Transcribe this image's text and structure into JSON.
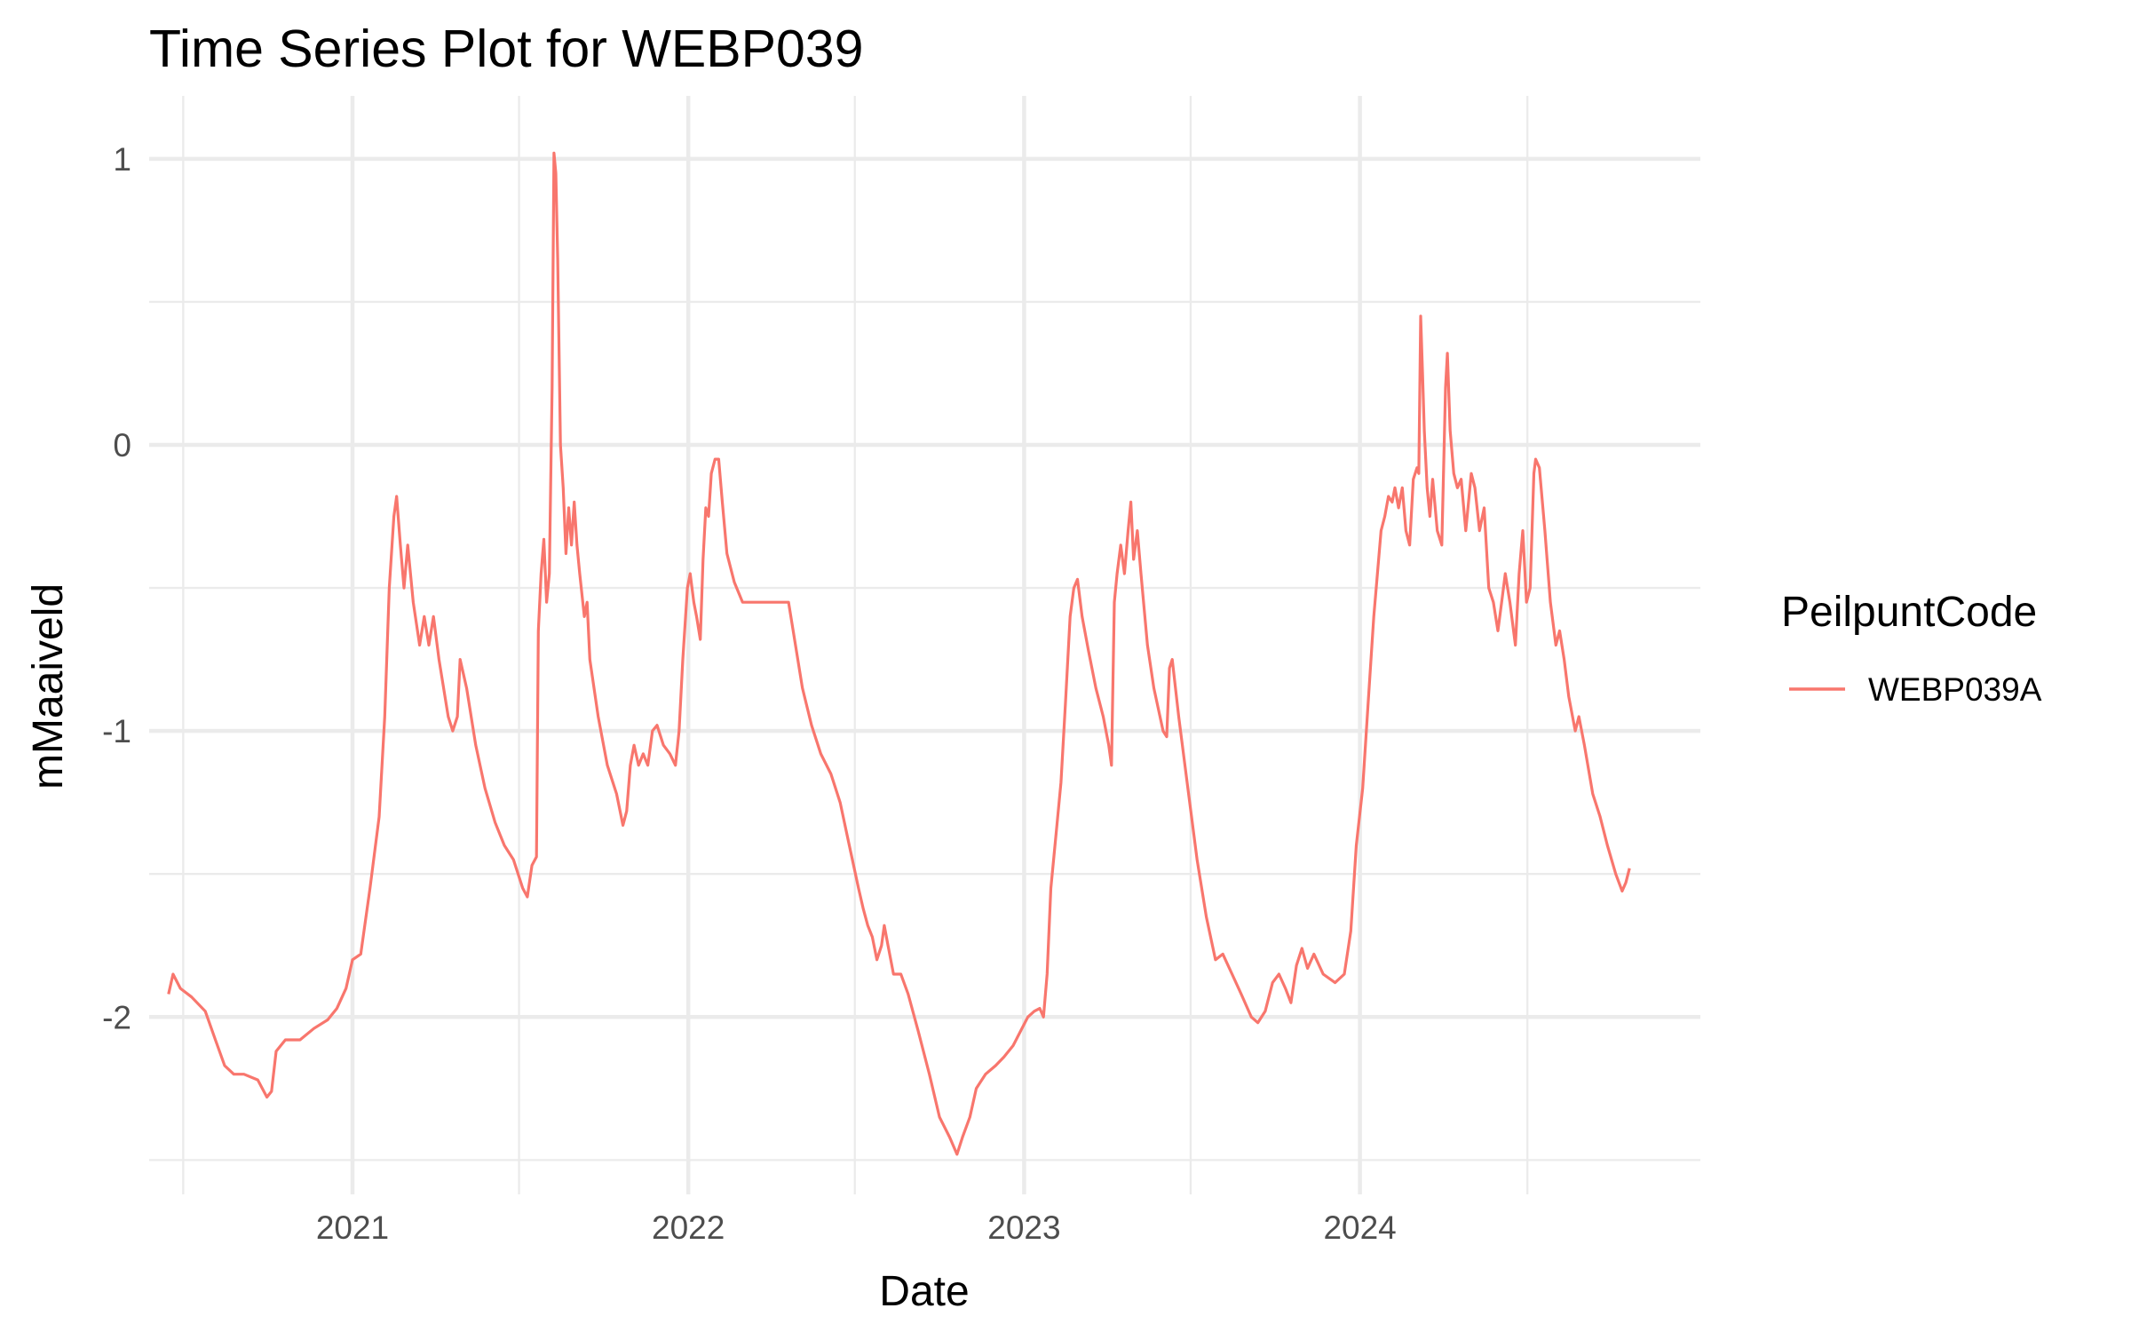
{
  "chart_data": {
    "type": "line",
    "title": "Time Series Plot for WEBP039",
    "xlabel": "Date",
    "ylabel": "mMaaiveld",
    "x_ticks": [
      "2021",
      "2022",
      "2023",
      "2024"
    ],
    "y_ticks": [
      "1",
      "0",
      "-1",
      "-2"
    ],
    "xlim": [
      "2020-05-25",
      "2025-01-05"
    ],
    "ylim": [
      -2.62,
      1.22
    ],
    "grid": true,
    "legend": {
      "title": "PeilpuntCode",
      "position": "right"
    },
    "series": [
      {
        "name": "WEBP039A",
        "color": "#F8766D",
        "points": [
          [
            "2020-06-15",
            -1.92
          ],
          [
            "2020-06-20",
            -1.85
          ],
          [
            "2020-06-28",
            -1.9
          ],
          [
            "2020-07-10",
            -1.93
          ],
          [
            "2020-07-25",
            -1.98
          ],
          [
            "2020-08-05",
            -2.08
          ],
          [
            "2020-08-15",
            -2.17
          ],
          [
            "2020-08-25",
            -2.2
          ],
          [
            "2020-09-05",
            -2.2
          ],
          [
            "2020-09-20",
            -2.22
          ],
          [
            "2020-09-30",
            -2.28
          ],
          [
            "2020-10-05",
            -2.26
          ],
          [
            "2020-10-10",
            -2.12
          ],
          [
            "2020-10-20",
            -2.08
          ],
          [
            "2020-11-05",
            -2.08
          ],
          [
            "2020-11-20",
            -2.04
          ],
          [
            "2020-12-05",
            -2.01
          ],
          [
            "2020-12-15",
            -1.97
          ],
          [
            "2020-12-25",
            -1.9
          ],
          [
            "2021-01-01",
            -1.8
          ],
          [
            "2021-01-10",
            -1.78
          ],
          [
            "2021-01-20",
            -1.55
          ],
          [
            "2021-01-30",
            -1.3
          ],
          [
            "2021-02-05",
            -0.95
          ],
          [
            "2021-02-10",
            -0.5
          ],
          [
            "2021-02-15",
            -0.25
          ],
          [
            "2021-02-18",
            -0.18
          ],
          [
            "2021-02-22",
            -0.35
          ],
          [
            "2021-02-26",
            -0.5
          ],
          [
            "2021-03-02",
            -0.35
          ],
          [
            "2021-03-08",
            -0.55
          ],
          [
            "2021-03-15",
            -0.7
          ],
          [
            "2021-03-20",
            -0.6
          ],
          [
            "2021-03-25",
            -0.7
          ],
          [
            "2021-03-30",
            -0.6
          ],
          [
            "2021-04-05",
            -0.75
          ],
          [
            "2021-04-15",
            -0.95
          ],
          [
            "2021-04-20",
            -1.0
          ],
          [
            "2021-04-25",
            -0.95
          ],
          [
            "2021-04-28",
            -0.75
          ],
          [
            "2021-05-05",
            -0.85
          ],
          [
            "2021-05-15",
            -1.05
          ],
          [
            "2021-05-25",
            -1.2
          ],
          [
            "2021-06-05",
            -1.32
          ],
          [
            "2021-06-15",
            -1.4
          ],
          [
            "2021-06-25",
            -1.45
          ],
          [
            "2021-07-05",
            -1.55
          ],
          [
            "2021-07-10",
            -1.58
          ],
          [
            "2021-07-15",
            -1.47
          ],
          [
            "2021-07-20",
            -1.44
          ],
          [
            "2021-07-22",
            -0.65
          ],
          [
            "2021-07-25",
            -0.45
          ],
          [
            "2021-07-28",
            -0.33
          ],
          [
            "2021-07-31",
            -0.55
          ],
          [
            "2021-08-03",
            -0.45
          ],
          [
            "2021-08-06",
            0.2
          ],
          [
            "2021-08-08",
            1.02
          ],
          [
            "2021-08-10",
            0.95
          ],
          [
            "2021-08-12",
            0.65
          ],
          [
            "2021-08-15",
            0.0
          ],
          [
            "2021-08-18",
            -0.15
          ],
          [
            "2021-08-21",
            -0.38
          ],
          [
            "2021-08-24",
            -0.22
          ],
          [
            "2021-08-27",
            -0.35
          ],
          [
            "2021-08-30",
            -0.2
          ],
          [
            "2021-09-02",
            -0.35
          ],
          [
            "2021-09-05",
            -0.45
          ],
          [
            "2021-09-10",
            -0.6
          ],
          [
            "2021-09-13",
            -0.55
          ],
          [
            "2021-09-16",
            -0.75
          ],
          [
            "2021-09-25",
            -0.95
          ],
          [
            "2021-10-05",
            -1.12
          ],
          [
            "2021-10-15",
            -1.22
          ],
          [
            "2021-10-22",
            -1.33
          ],
          [
            "2021-10-26",
            -1.28
          ],
          [
            "2021-10-30",
            -1.12
          ],
          [
            "2021-11-03",
            -1.05
          ],
          [
            "2021-11-08",
            -1.12
          ],
          [
            "2021-11-13",
            -1.08
          ],
          [
            "2021-11-18",
            -1.12
          ],
          [
            "2021-11-23",
            -1.0
          ],
          [
            "2021-11-28",
            -0.98
          ],
          [
            "2021-12-05",
            -1.05
          ],
          [
            "2021-12-12",
            -1.08
          ],
          [
            "2021-12-18",
            -1.12
          ],
          [
            "2021-12-22",
            -1.0
          ],
          [
            "2021-12-26",
            -0.75
          ],
          [
            "2021-12-31",
            -0.5
          ],
          [
            "2022-01-03",
            -0.45
          ],
          [
            "2022-01-07",
            -0.55
          ],
          [
            "2022-01-10",
            -0.6
          ],
          [
            "2022-01-14",
            -0.68
          ],
          [
            "2022-01-17",
            -0.4
          ],
          [
            "2022-01-20",
            -0.22
          ],
          [
            "2022-01-23",
            -0.25
          ],
          [
            "2022-01-26",
            -0.1
          ],
          [
            "2022-01-30",
            -0.05
          ],
          [
            "2022-02-03",
            -0.05
          ],
          [
            "2022-02-07",
            -0.2
          ],
          [
            "2022-02-12",
            -0.38
          ],
          [
            "2022-02-20",
            -0.48
          ],
          [
            "2022-03-01",
            -0.55
          ],
          [
            "2022-03-15",
            -0.55
          ],
          [
            "2022-04-01",
            -0.55
          ],
          [
            "2022-04-15",
            -0.55
          ],
          [
            "2022-04-20",
            -0.55
          ],
          [
            "2022-04-25",
            -0.65
          ],
          [
            "2022-05-05",
            -0.85
          ],
          [
            "2022-05-15",
            -0.98
          ],
          [
            "2022-05-25",
            -1.08
          ],
          [
            "2022-06-05",
            -1.15
          ],
          [
            "2022-06-15",
            -1.25
          ],
          [
            "2022-06-25",
            -1.4
          ],
          [
            "2022-07-05",
            -1.55
          ],
          [
            "2022-07-10",
            -1.62
          ],
          [
            "2022-07-15",
            -1.68
          ],
          [
            "2022-07-20",
            -1.72
          ],
          [
            "2022-07-25",
            -1.8
          ],
          [
            "2022-07-30",
            -1.75
          ],
          [
            "2022-08-02",
            -1.68
          ],
          [
            "2022-08-06",
            -1.75
          ],
          [
            "2022-08-12",
            -1.85
          ],
          [
            "2022-08-20",
            -1.85
          ],
          [
            "2022-08-28",
            -1.92
          ],
          [
            "2022-09-08",
            -2.05
          ],
          [
            "2022-09-20",
            -2.2
          ],
          [
            "2022-10-01",
            -2.35
          ],
          [
            "2022-10-12",
            -2.42
          ],
          [
            "2022-10-20",
            -2.48
          ],
          [
            "2022-10-26",
            -2.42
          ],
          [
            "2022-11-03",
            -2.35
          ],
          [
            "2022-11-10",
            -2.25
          ],
          [
            "2022-11-20",
            -2.2
          ],
          [
            "2022-12-01",
            -2.17
          ],
          [
            "2022-12-10",
            -2.14
          ],
          [
            "2022-12-20",
            -2.1
          ],
          [
            "2022-12-28",
            -2.05
          ],
          [
            "2023-01-05",
            -2.0
          ],
          [
            "2023-01-12",
            -1.98
          ],
          [
            "2023-01-18",
            -1.97
          ],
          [
            "2023-01-22",
            -2.0
          ],
          [
            "2023-01-26",
            -1.85
          ],
          [
            "2023-01-30",
            -1.55
          ],
          [
            "2023-02-05",
            -1.35
          ],
          [
            "2023-02-10",
            -1.18
          ],
          [
            "2023-02-15",
            -0.9
          ],
          [
            "2023-02-20",
            -0.6
          ],
          [
            "2023-02-24",
            -0.5
          ],
          [
            "2023-02-28",
            -0.47
          ],
          [
            "2023-03-05",
            -0.6
          ],
          [
            "2023-03-12",
            -0.72
          ],
          [
            "2023-03-20",
            -0.85
          ],
          [
            "2023-03-28",
            -0.95
          ],
          [
            "2023-04-03",
            -1.05
          ],
          [
            "2023-04-06",
            -1.12
          ],
          [
            "2023-04-09",
            -0.55
          ],
          [
            "2023-04-12",
            -0.45
          ],
          [
            "2023-04-16",
            -0.35
          ],
          [
            "2023-04-20",
            -0.45
          ],
          [
            "2023-04-24",
            -0.3
          ],
          [
            "2023-04-27",
            -0.2
          ],
          [
            "2023-04-30",
            -0.4
          ],
          [
            "2023-05-04",
            -0.3
          ],
          [
            "2023-05-08",
            -0.45
          ],
          [
            "2023-05-15",
            -0.7
          ],
          [
            "2023-05-22",
            -0.85
          ],
          [
            "2023-06-01",
            -1.0
          ],
          [
            "2023-06-05",
            -1.02
          ],
          [
            "2023-06-08",
            -0.78
          ],
          [
            "2023-06-11",
            -0.75
          ],
          [
            "2023-06-18",
            -0.95
          ],
          [
            "2023-06-28",
            -1.2
          ],
          [
            "2023-07-08",
            -1.45
          ],
          [
            "2023-07-18",
            -1.65
          ],
          [
            "2023-07-28",
            -1.8
          ],
          [
            "2023-08-05",
            -1.78
          ],
          [
            "2023-08-15",
            -1.85
          ],
          [
            "2023-08-25",
            -1.92
          ],
          [
            "2023-09-05",
            -2.0
          ],
          [
            "2023-09-12",
            -2.02
          ],
          [
            "2023-09-20",
            -1.98
          ],
          [
            "2023-09-28",
            -1.88
          ],
          [
            "2023-10-05",
            -1.85
          ],
          [
            "2023-10-12",
            -1.9
          ],
          [
            "2023-10-18",
            -1.95
          ],
          [
            "2023-10-24",
            -1.82
          ],
          [
            "2023-10-30",
            -1.76
          ],
          [
            "2023-11-05",
            -1.83
          ],
          [
            "2023-11-12",
            -1.78
          ],
          [
            "2023-11-22",
            -1.85
          ],
          [
            "2023-12-05",
            -1.88
          ],
          [
            "2023-12-15",
            -1.85
          ],
          [
            "2023-12-22",
            -1.7
          ],
          [
            "2023-12-28",
            -1.4
          ],
          [
            "2024-01-04",
            -1.2
          ],
          [
            "2024-01-10",
            -0.9
          ],
          [
            "2024-01-16",
            -0.6
          ],
          [
            "2024-01-20",
            -0.45
          ],
          [
            "2024-01-24",
            -0.3
          ],
          [
            "2024-01-28",
            -0.25
          ],
          [
            "2024-02-01",
            -0.18
          ],
          [
            "2024-02-05",
            -0.2
          ],
          [
            "2024-02-08",
            -0.15
          ],
          [
            "2024-02-12",
            -0.22
          ],
          [
            "2024-02-16",
            -0.15
          ],
          [
            "2024-02-20",
            -0.3
          ],
          [
            "2024-02-24",
            -0.35
          ],
          [
            "2024-02-28",
            -0.12
          ],
          [
            "2024-03-03",
            -0.08
          ],
          [
            "2024-03-05",
            -0.1
          ],
          [
            "2024-03-07",
            0.45
          ],
          [
            "2024-03-09",
            0.25
          ],
          [
            "2024-03-11",
            0.05
          ],
          [
            "2024-03-14",
            -0.15
          ],
          [
            "2024-03-17",
            -0.25
          ],
          [
            "2024-03-20",
            -0.12
          ],
          [
            "2024-03-25",
            -0.3
          ],
          [
            "2024-03-30",
            -0.35
          ],
          [
            "2024-04-03",
            0.2
          ],
          [
            "2024-04-05",
            0.32
          ],
          [
            "2024-04-08",
            0.05
          ],
          [
            "2024-04-12",
            -0.1
          ],
          [
            "2024-04-16",
            -0.15
          ],
          [
            "2024-04-20",
            -0.12
          ],
          [
            "2024-04-25",
            -0.3
          ],
          [
            "2024-05-01",
            -0.1
          ],
          [
            "2024-05-05",
            -0.15
          ],
          [
            "2024-05-10",
            -0.3
          ],
          [
            "2024-05-15",
            -0.22
          ],
          [
            "2024-05-20",
            -0.5
          ],
          [
            "2024-05-25",
            -0.55
          ],
          [
            "2024-05-30",
            -0.65
          ],
          [
            "2024-06-03",
            -0.55
          ],
          [
            "2024-06-07",
            -0.45
          ],
          [
            "2024-06-12",
            -0.55
          ],
          [
            "2024-06-18",
            -0.7
          ],
          [
            "2024-06-22",
            -0.45
          ],
          [
            "2024-06-26",
            -0.3
          ],
          [
            "2024-06-30",
            -0.55
          ],
          [
            "2024-07-04",
            -0.5
          ],
          [
            "2024-07-08",
            -0.1
          ],
          [
            "2024-07-10",
            -0.05
          ],
          [
            "2024-07-14",
            -0.08
          ],
          [
            "2024-07-20",
            -0.3
          ],
          [
            "2024-07-26",
            -0.55
          ],
          [
            "2024-08-01",
            -0.7
          ],
          [
            "2024-08-05",
            -0.65
          ],
          [
            "2024-08-10",
            -0.75
          ],
          [
            "2024-08-15",
            -0.88
          ],
          [
            "2024-08-22",
            -1.0
          ],
          [
            "2024-08-26",
            -0.95
          ],
          [
            "2024-09-01",
            -1.05
          ],
          [
            "2024-09-10",
            -1.22
          ],
          [
            "2024-09-18",
            -1.3
          ],
          [
            "2024-09-26",
            -1.4
          ],
          [
            "2024-10-05",
            -1.5
          ],
          [
            "2024-10-12",
            -1.56
          ],
          [
            "2024-10-16",
            -1.53
          ],
          [
            "2024-10-20",
            -1.48
          ]
        ]
      }
    ]
  }
}
